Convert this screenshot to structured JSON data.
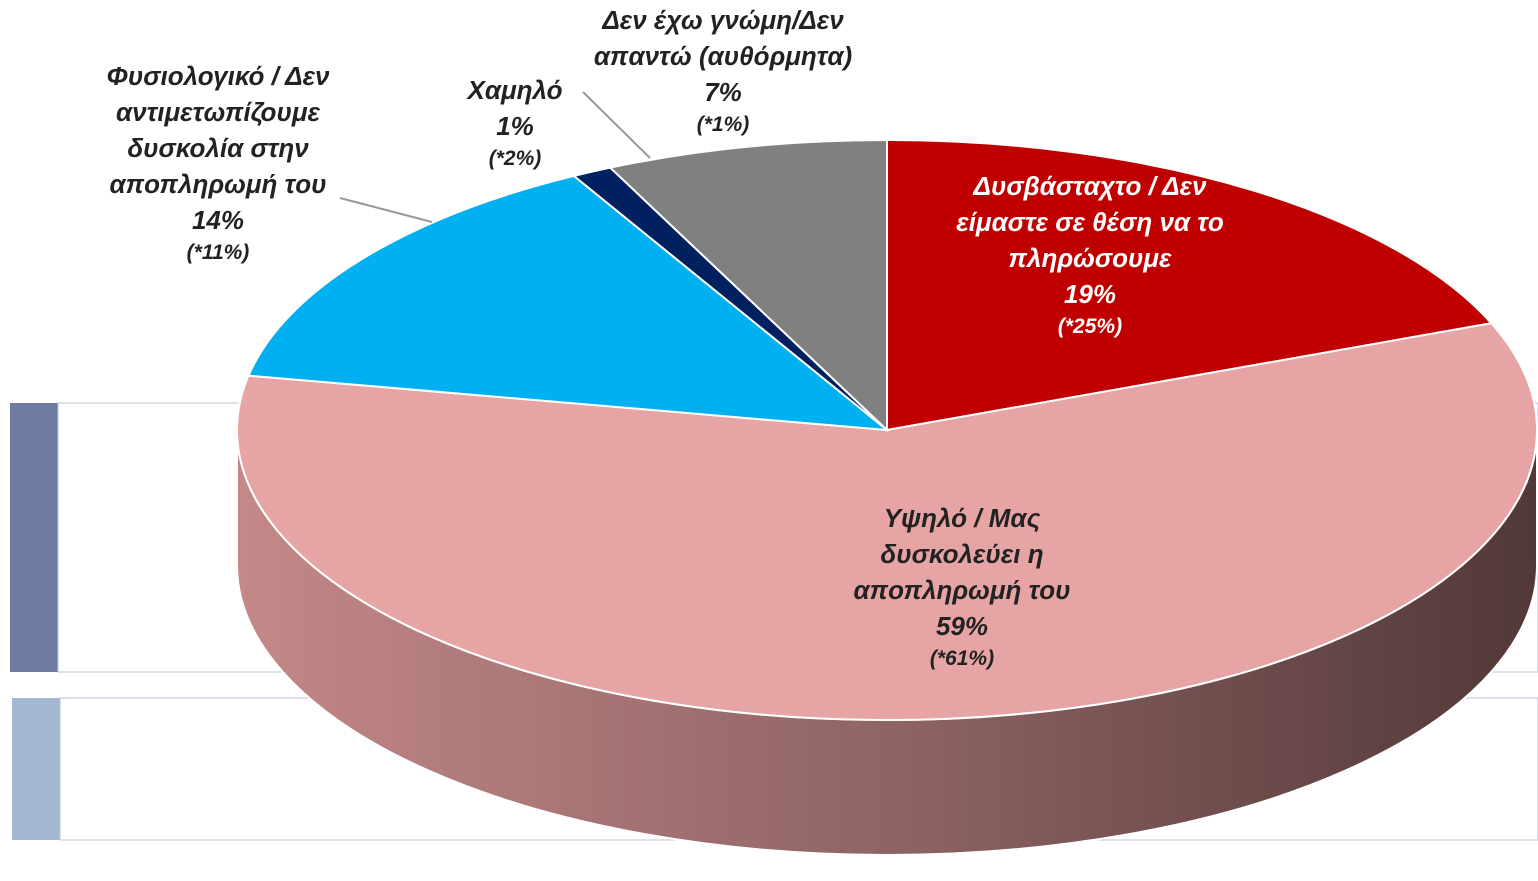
{
  "chart_data": {
    "type": "pie",
    "categories": [
      "Δυσβάσταχτο / Δεν είμαστε σε θέση να το πληρώσουμε",
      "Υψηλό / Μας δυσκολεύει η αποπληρωμή του",
      "Φυσιολογικό / Δεν αντιμετωπίζουμε δυσκολία στην αποπληρωμή του",
      "Χαμηλό",
      "Δεν έχω γνώμη/Δεν απαντώ (αυθόρμητα)"
    ],
    "values": [
      19,
      59,
      14,
      1,
      7
    ],
    "value_labels": [
      "19%",
      "59%",
      "14%",
      "1%",
      "7%"
    ],
    "comparison_values": [
      25,
      61,
      11,
      2,
      1
    ],
    "comparison_labels": [
      "(*25%)",
      "(*61%)",
      "(*11%)",
      "(*2%)",
      "(*1%)"
    ],
    "colors": [
      "#c00000",
      "#e6a4a4",
      "#00b0f0",
      "#002060",
      "#808080"
    ]
  }
}
